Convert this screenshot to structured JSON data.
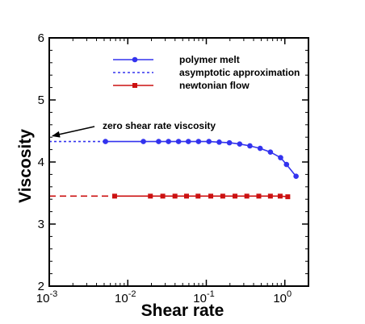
{
  "chart_data": {
    "type": "line",
    "title": "",
    "xlabel": "Shear rate",
    "ylabel": "Viscosity",
    "x_scale": "log",
    "xlim": [
      0.001,
      2
    ],
    "ylim": [
      2,
      6
    ],
    "grid": false,
    "legend_position": "top-center",
    "x_ticks": [
      {
        "value": 0.001,
        "base": "10",
        "exp": "-3"
      },
      {
        "value": 0.01,
        "base": "10",
        "exp": "-2"
      },
      {
        "value": 0.1,
        "base": "10",
        "exp": "-1"
      },
      {
        "value": 1,
        "base": "10",
        "exp": "0"
      }
    ],
    "y_ticks": [
      {
        "value": 2,
        "label": "2"
      },
      {
        "value": 3,
        "label": "3"
      },
      {
        "value": 4,
        "label": "4"
      },
      {
        "value": 5,
        "label": "5"
      },
      {
        "value": 6,
        "label": "6"
      }
    ],
    "series": [
      {
        "name": "polymer melt",
        "color": "#3333ee",
        "line": "solid",
        "marker": "circle",
        "x": [
          0.0052,
          0.0158,
          0.0247,
          0.033,
          0.0443,
          0.0591,
          0.0796,
          0.108,
          0.146,
          0.197,
          0.266,
          0.359,
          0.485,
          0.655,
          0.883,
          1.05,
          1.39
        ],
        "y": [
          4.33,
          4.33,
          4.33,
          4.33,
          4.33,
          4.33,
          4.33,
          4.33,
          4.32,
          4.31,
          4.29,
          4.26,
          4.22,
          4.16,
          4.07,
          3.96,
          3.77
        ]
      },
      {
        "name": "asymptotic approximation",
        "color": "#3333ee",
        "line": "dotted",
        "marker": "none",
        "x": [
          0.001,
          0.0052
        ],
        "y": [
          4.33,
          4.33
        ]
      },
      {
        "name": "newtonian flow",
        "color": "#cc1111",
        "line": "solid",
        "marker": "square",
        "x": [
          0.0068,
          0.0194,
          0.0279,
          0.0399,
          0.056,
          0.0785,
          0.114,
          0.162,
          0.232,
          0.328,
          0.466,
          0.655,
          0.872,
          1.09
        ],
        "y": [
          3.45,
          3.45,
          3.45,
          3.45,
          3.45,
          3.45,
          3.45,
          3.45,
          3.45,
          3.45,
          3.45,
          3.45,
          3.45,
          3.44
        ]
      },
      {
        "name": "",
        "color": "#cc1111",
        "line": "dashed",
        "marker": "none",
        "x": [
          0.001,
          0.0068
        ],
        "y": [
          3.45,
          3.45
        ]
      }
    ],
    "legend": [
      "polymer melt",
      "asymptotic approximation",
      "newtonian flow"
    ],
    "annotations": [
      {
        "text": "zero shear rate viscosity",
        "arrow_to": {
          "x": 0.0011,
          "y": 4.42
        }
      }
    ]
  }
}
